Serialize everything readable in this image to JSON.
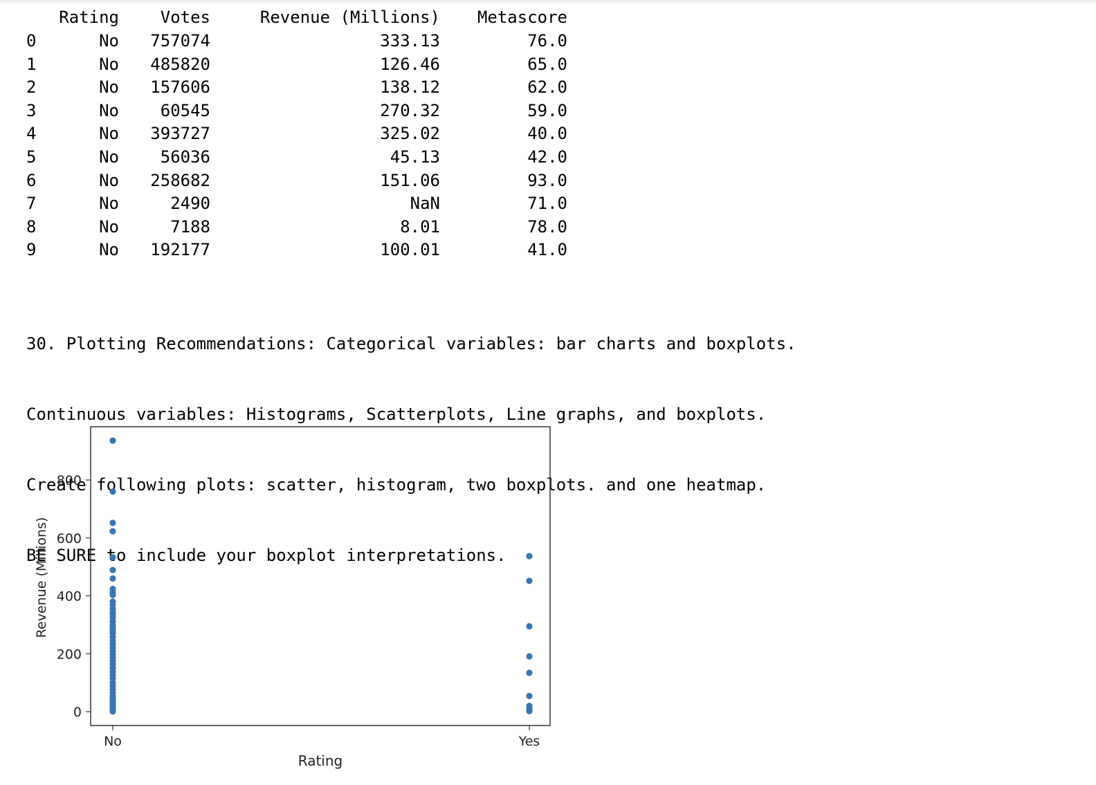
{
  "dataframe": {
    "columns": [
      "Rating",
      "Votes",
      "Revenue (Millions)",
      "Metascore"
    ],
    "rows": [
      {
        "index": "0",
        "rating": "No",
        "votes": "757074",
        "revenue": "333.13",
        "metascore": "76.0"
      },
      {
        "index": "1",
        "rating": "No",
        "votes": "485820",
        "revenue": "126.46",
        "metascore": "65.0"
      },
      {
        "index": "2",
        "rating": "No",
        "votes": "157606",
        "revenue": "138.12",
        "metascore": "62.0"
      },
      {
        "index": "3",
        "rating": "No",
        "votes": "60545",
        "revenue": "270.32",
        "metascore": "59.0"
      },
      {
        "index": "4",
        "rating": "No",
        "votes": "393727",
        "revenue": "325.02",
        "metascore": "40.0"
      },
      {
        "index": "5",
        "rating": "No",
        "votes": "56036",
        "revenue": "45.13",
        "metascore": "42.0"
      },
      {
        "index": "6",
        "rating": "No",
        "votes": "258682",
        "revenue": "151.06",
        "metascore": "93.0"
      },
      {
        "index": "7",
        "rating": "No",
        "votes": "2490",
        "revenue": "NaN",
        "metascore": "71.0"
      },
      {
        "index": "8",
        "rating": "No",
        "votes": "7188",
        "revenue": "8.01",
        "metascore": "78.0"
      },
      {
        "index": "9",
        "rating": "No",
        "votes": "192177",
        "revenue": "100.01",
        "metascore": "41.0"
      }
    ]
  },
  "markdown": {
    "lines": [
      "30. Plotting Recommendations: Categorical variables: bar charts and boxplots.",
      "Continuous variables: Histograms, Scatterplots, Line graphs, and boxplots.",
      "Create following plots: scatter, histogram, two boxplots. and one heatmap.",
      "BE SURE to include your boxplot interpretations."
    ]
  },
  "colors": {
    "point": "#3a75b0",
    "axis": "#333333"
  },
  "chart_data": {
    "type": "scatter",
    "title": "",
    "xlabel": "Rating",
    "ylabel": "Revenue (Millions)",
    "categories": [
      "No",
      "Yes"
    ],
    "yticks": [
      0,
      200,
      400,
      600,
      800
    ],
    "ylim": [
      -45,
      990
    ],
    "grid": false,
    "points": [
      {
        "x": "No",
        "y": 936
      },
      {
        "x": "No",
        "y": 760
      },
      {
        "x": "No",
        "y": 652
      },
      {
        "x": "No",
        "y": 623
      },
      {
        "x": "No",
        "y": 533
      },
      {
        "x": "No",
        "y": 489
      },
      {
        "x": "No",
        "y": 460
      },
      {
        "x": "No",
        "y": 424
      },
      {
        "x": "No",
        "y": 412
      },
      {
        "x": "No",
        "y": 403
      },
      {
        "x": "No",
        "y": 380
      },
      {
        "x": "No",
        "y": 368
      },
      {
        "x": "No",
        "y": 355
      },
      {
        "x": "No",
        "y": 342
      },
      {
        "x": "No",
        "y": 333.13
      },
      {
        "x": "No",
        "y": 325.02
      },
      {
        "x": "No",
        "y": 312
      },
      {
        "x": "No",
        "y": 300
      },
      {
        "x": "No",
        "y": 290
      },
      {
        "x": "No",
        "y": 280
      },
      {
        "x": "No",
        "y": 270.32
      },
      {
        "x": "No",
        "y": 258
      },
      {
        "x": "No",
        "y": 245
      },
      {
        "x": "No",
        "y": 234
      },
      {
        "x": "No",
        "y": 222
      },
      {
        "x": "No",
        "y": 210
      },
      {
        "x": "No",
        "y": 198
      },
      {
        "x": "No",
        "y": 186
      },
      {
        "x": "No",
        "y": 175
      },
      {
        "x": "No",
        "y": 163
      },
      {
        "x": "No",
        "y": 151.06
      },
      {
        "x": "No",
        "y": 138.12
      },
      {
        "x": "No",
        "y": 126.46
      },
      {
        "x": "No",
        "y": 114
      },
      {
        "x": "No",
        "y": 100.01
      },
      {
        "x": "No",
        "y": 88
      },
      {
        "x": "No",
        "y": 76
      },
      {
        "x": "No",
        "y": 64
      },
      {
        "x": "No",
        "y": 52
      },
      {
        "x": "No",
        "y": 45.13
      },
      {
        "x": "No",
        "y": 38
      },
      {
        "x": "No",
        "y": 30
      },
      {
        "x": "No",
        "y": 22
      },
      {
        "x": "No",
        "y": 15
      },
      {
        "x": "No",
        "y": 8.01
      },
      {
        "x": "No",
        "y": 4
      },
      {
        "x": "No",
        "y": 1
      },
      {
        "x": "Yes",
        "y": 537
      },
      {
        "x": "Yes",
        "y": 452
      },
      {
        "x": "Yes",
        "y": 295
      },
      {
        "x": "Yes",
        "y": 191
      },
      {
        "x": "Yes",
        "y": 134
      },
      {
        "x": "Yes",
        "y": 54
      },
      {
        "x": "Yes",
        "y": 20
      },
      {
        "x": "Yes",
        "y": 12
      },
      {
        "x": "Yes",
        "y": 6
      },
      {
        "x": "Yes",
        "y": 2
      }
    ]
  }
}
